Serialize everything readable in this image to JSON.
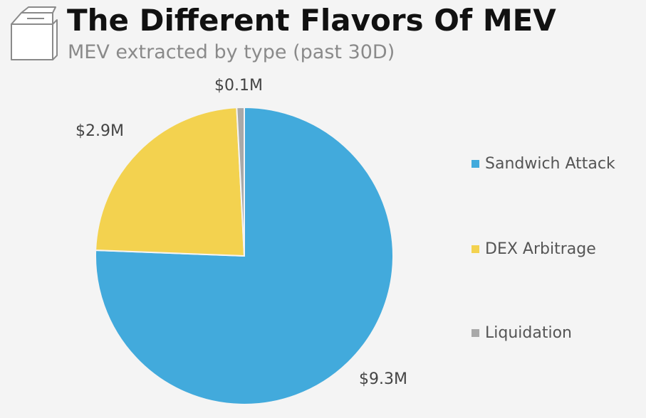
{
  "header": {
    "title": "The Different Flavors Of MEV",
    "subtitle": "MEV extracted by type (past 30D)",
    "logo_icon": "milk-carton-icon"
  },
  "chart_data": {
    "type": "pie",
    "title": "The Different Flavors Of MEV",
    "subtitle": "MEV extracted by type (past 30D)",
    "unit": "$M",
    "start_angle_deg": 0,
    "direction": "clockwise",
    "legend_position": "right",
    "slices": [
      {
        "name": "Sandwich Attack",
        "value": 9.3,
        "label": "$9.3M",
        "color": "#42aadc"
      },
      {
        "name": "DEX Arbitrage",
        "value": 2.9,
        "label": "$2.9M",
        "color": "#f3d24f"
      },
      {
        "name": "Liquidation",
        "value": 0.1,
        "label": "$0.1M",
        "color": "#a9a9a9"
      }
    ]
  }
}
